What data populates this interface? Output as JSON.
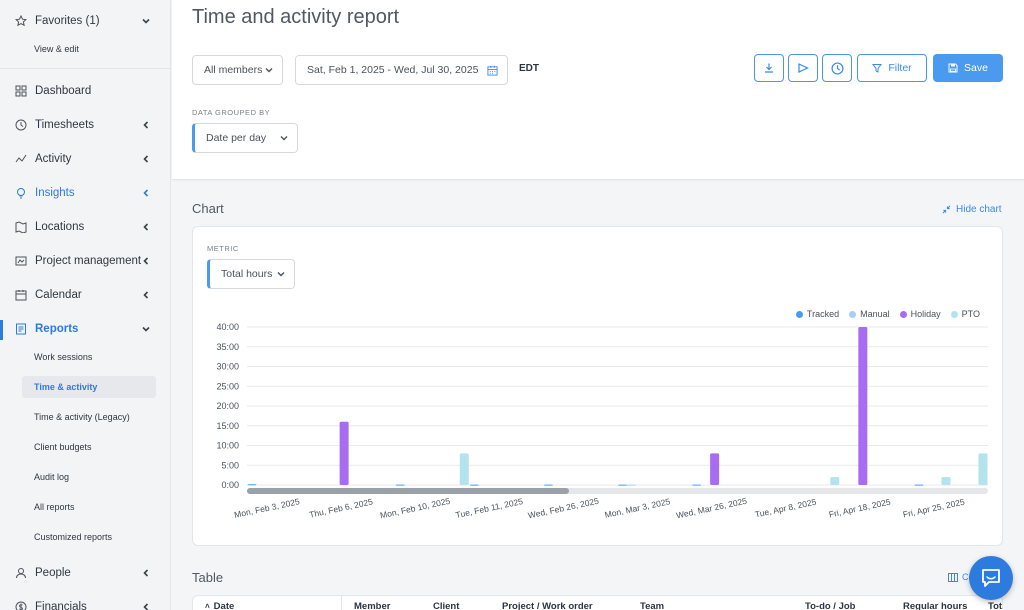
{
  "sidebar": {
    "favorites": {
      "label": "Favorites (1)",
      "sub": "View & edit"
    },
    "items": [
      {
        "label": "Dashboard"
      },
      {
        "label": "Timesheets"
      },
      {
        "label": "Activity"
      },
      {
        "label": "Insights"
      },
      {
        "label": "Locations"
      },
      {
        "label": "Project management"
      },
      {
        "label": "Calendar"
      },
      {
        "label": "Reports"
      },
      {
        "label": "People"
      },
      {
        "label": "Financials"
      }
    ],
    "reports_sub": [
      "Work sessions",
      "Time & activity",
      "Time & activity (Legacy)",
      "Client budgets",
      "Audit log",
      "All reports",
      "Customized reports"
    ]
  },
  "header": {
    "title": "Time and activity report",
    "members_select": "All members",
    "date_range": "Sat, Feb 1, 2025 - Wed, Jul 30, 2025",
    "timezone": "EDT",
    "filter_label": "Filter",
    "save_label": "Save",
    "grouped_by_label": "DATA GROUPED BY",
    "grouped_by_value": "Date per day"
  },
  "chart_section": {
    "title": "Chart",
    "hide_label": "Hide chart",
    "metric_label": "METRIC",
    "metric_value": "Total hours"
  },
  "chart_data": {
    "type": "bar",
    "ylim": [
      0,
      40
    ],
    "yticks": [
      "0:00",
      "5:00",
      "10:00",
      "15:00",
      "20:00",
      "25:00",
      "30:00",
      "35:00",
      "40:00"
    ],
    "legend": [
      "Tracked",
      "Manual",
      "Holiday",
      "PTO"
    ],
    "colors": {
      "Tracked": "#4a9af0",
      "Manual": "#a9cdf5",
      "Holiday": "#a86cf0",
      "PTO": "#b3e3ec"
    },
    "x_labels": [
      "Mon, Feb 3, 2025",
      "Thu, Feb 6, 2025",
      "Mon, Feb 10, 2025",
      "Tue, Feb 11, 2025",
      "Wed, Feb 26, 2025",
      "Mon, Mar 3, 2025",
      "Wed, Mar 26, 2025",
      "Tue, Apr 8, 2025",
      "Fri, Apr 18, 2025",
      "Fri, Apr 25, 2025"
    ],
    "categories": [
      "Mon, Feb 3, 2025",
      "",
      "Thu, Feb 6, 2025",
      "",
      "Mon, Feb 10, 2025",
      "",
      "Tue, Feb 11, 2025",
      "",
      "Wed, Feb 26, 2025",
      "",
      "Mon, Mar 3, 2025",
      "",
      "Wed, Mar 26, 2025",
      "",
      "Tue, Apr 8, 2025",
      "",
      "Fri, Apr 18, 2025",
      "",
      "Fri, Apr 25, 2025",
      ""
    ],
    "series": [
      {
        "name": "Tracked",
        "values": [
          0.2,
          0,
          0,
          0,
          0.1,
          0,
          0.1,
          0,
          0.1,
          0,
          0.1,
          0,
          0.1,
          0,
          0,
          0,
          0,
          0,
          0.1,
          0
        ]
      },
      {
        "name": "Manual",
        "values": [
          0,
          0,
          0,
          0,
          0,
          0,
          0,
          0,
          0,
          0,
          0.1,
          0,
          0,
          0,
          0,
          0,
          0,
          0,
          0,
          0
        ]
      },
      {
        "name": "Holiday",
        "values": [
          0,
          0,
          16,
          0,
          0,
          0,
          0,
          0,
          0,
          0,
          0,
          0,
          8,
          0,
          0,
          0,
          40,
          0,
          0,
          0
        ]
      },
      {
        "name": "PTO",
        "values": [
          0,
          0,
          0,
          0,
          0,
          8,
          0,
          0,
          0,
          0,
          0,
          0,
          0,
          0,
          0,
          2,
          0,
          0,
          2,
          8
        ]
      }
    ],
    "grid": true,
    "legend_position": "top-right"
  },
  "table_section": {
    "title": "Table",
    "columns_label": "Co",
    "columns": [
      "Date",
      "Member",
      "Client",
      "Project / Work order",
      "Team",
      "To-do / Job",
      "Regular hours",
      "Tot"
    ]
  }
}
